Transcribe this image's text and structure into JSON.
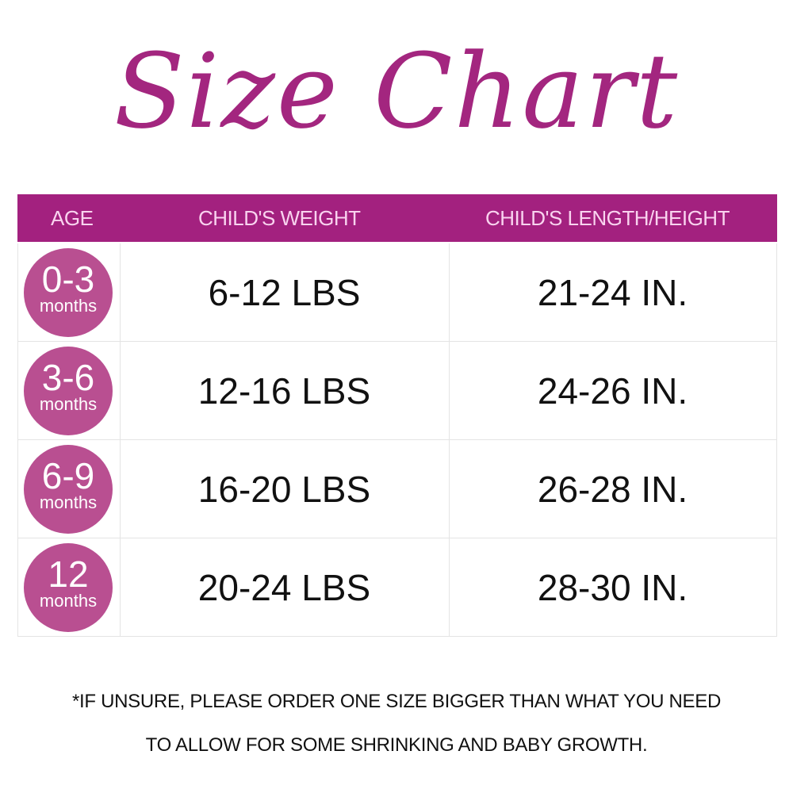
{
  "title": "Size Chart",
  "colors": {
    "header": "#a3217f",
    "circle": "#b94f91",
    "title": "#a3267f",
    "header_text": "#f9d3ef"
  },
  "headers": [
    "AGE",
    "CHILD'S WEIGHT",
    "CHILD'S LENGTH/HEIGHT"
  ],
  "rows": [
    {
      "age": "0-3",
      "unit": "months",
      "weight": "6-12 LBS",
      "length": "21-24 IN."
    },
    {
      "age": "3-6",
      "unit": "months",
      "weight": "12-16 LBS",
      "length": "24-26 IN."
    },
    {
      "age": "6-9",
      "unit": "months",
      "weight": "16-20 LBS",
      "length": "26-28 IN."
    },
    {
      "age": "12",
      "unit": "months",
      "weight": "20-24 LBS",
      "length": "28-30 IN."
    }
  ],
  "note": [
    "*IF UNSURE, PLEASE ORDER ONE SIZE BIGGER THAN WHAT YOU NEED",
    "TO ALLOW FOR SOME SHRINKING AND BABY GROWTH."
  ]
}
